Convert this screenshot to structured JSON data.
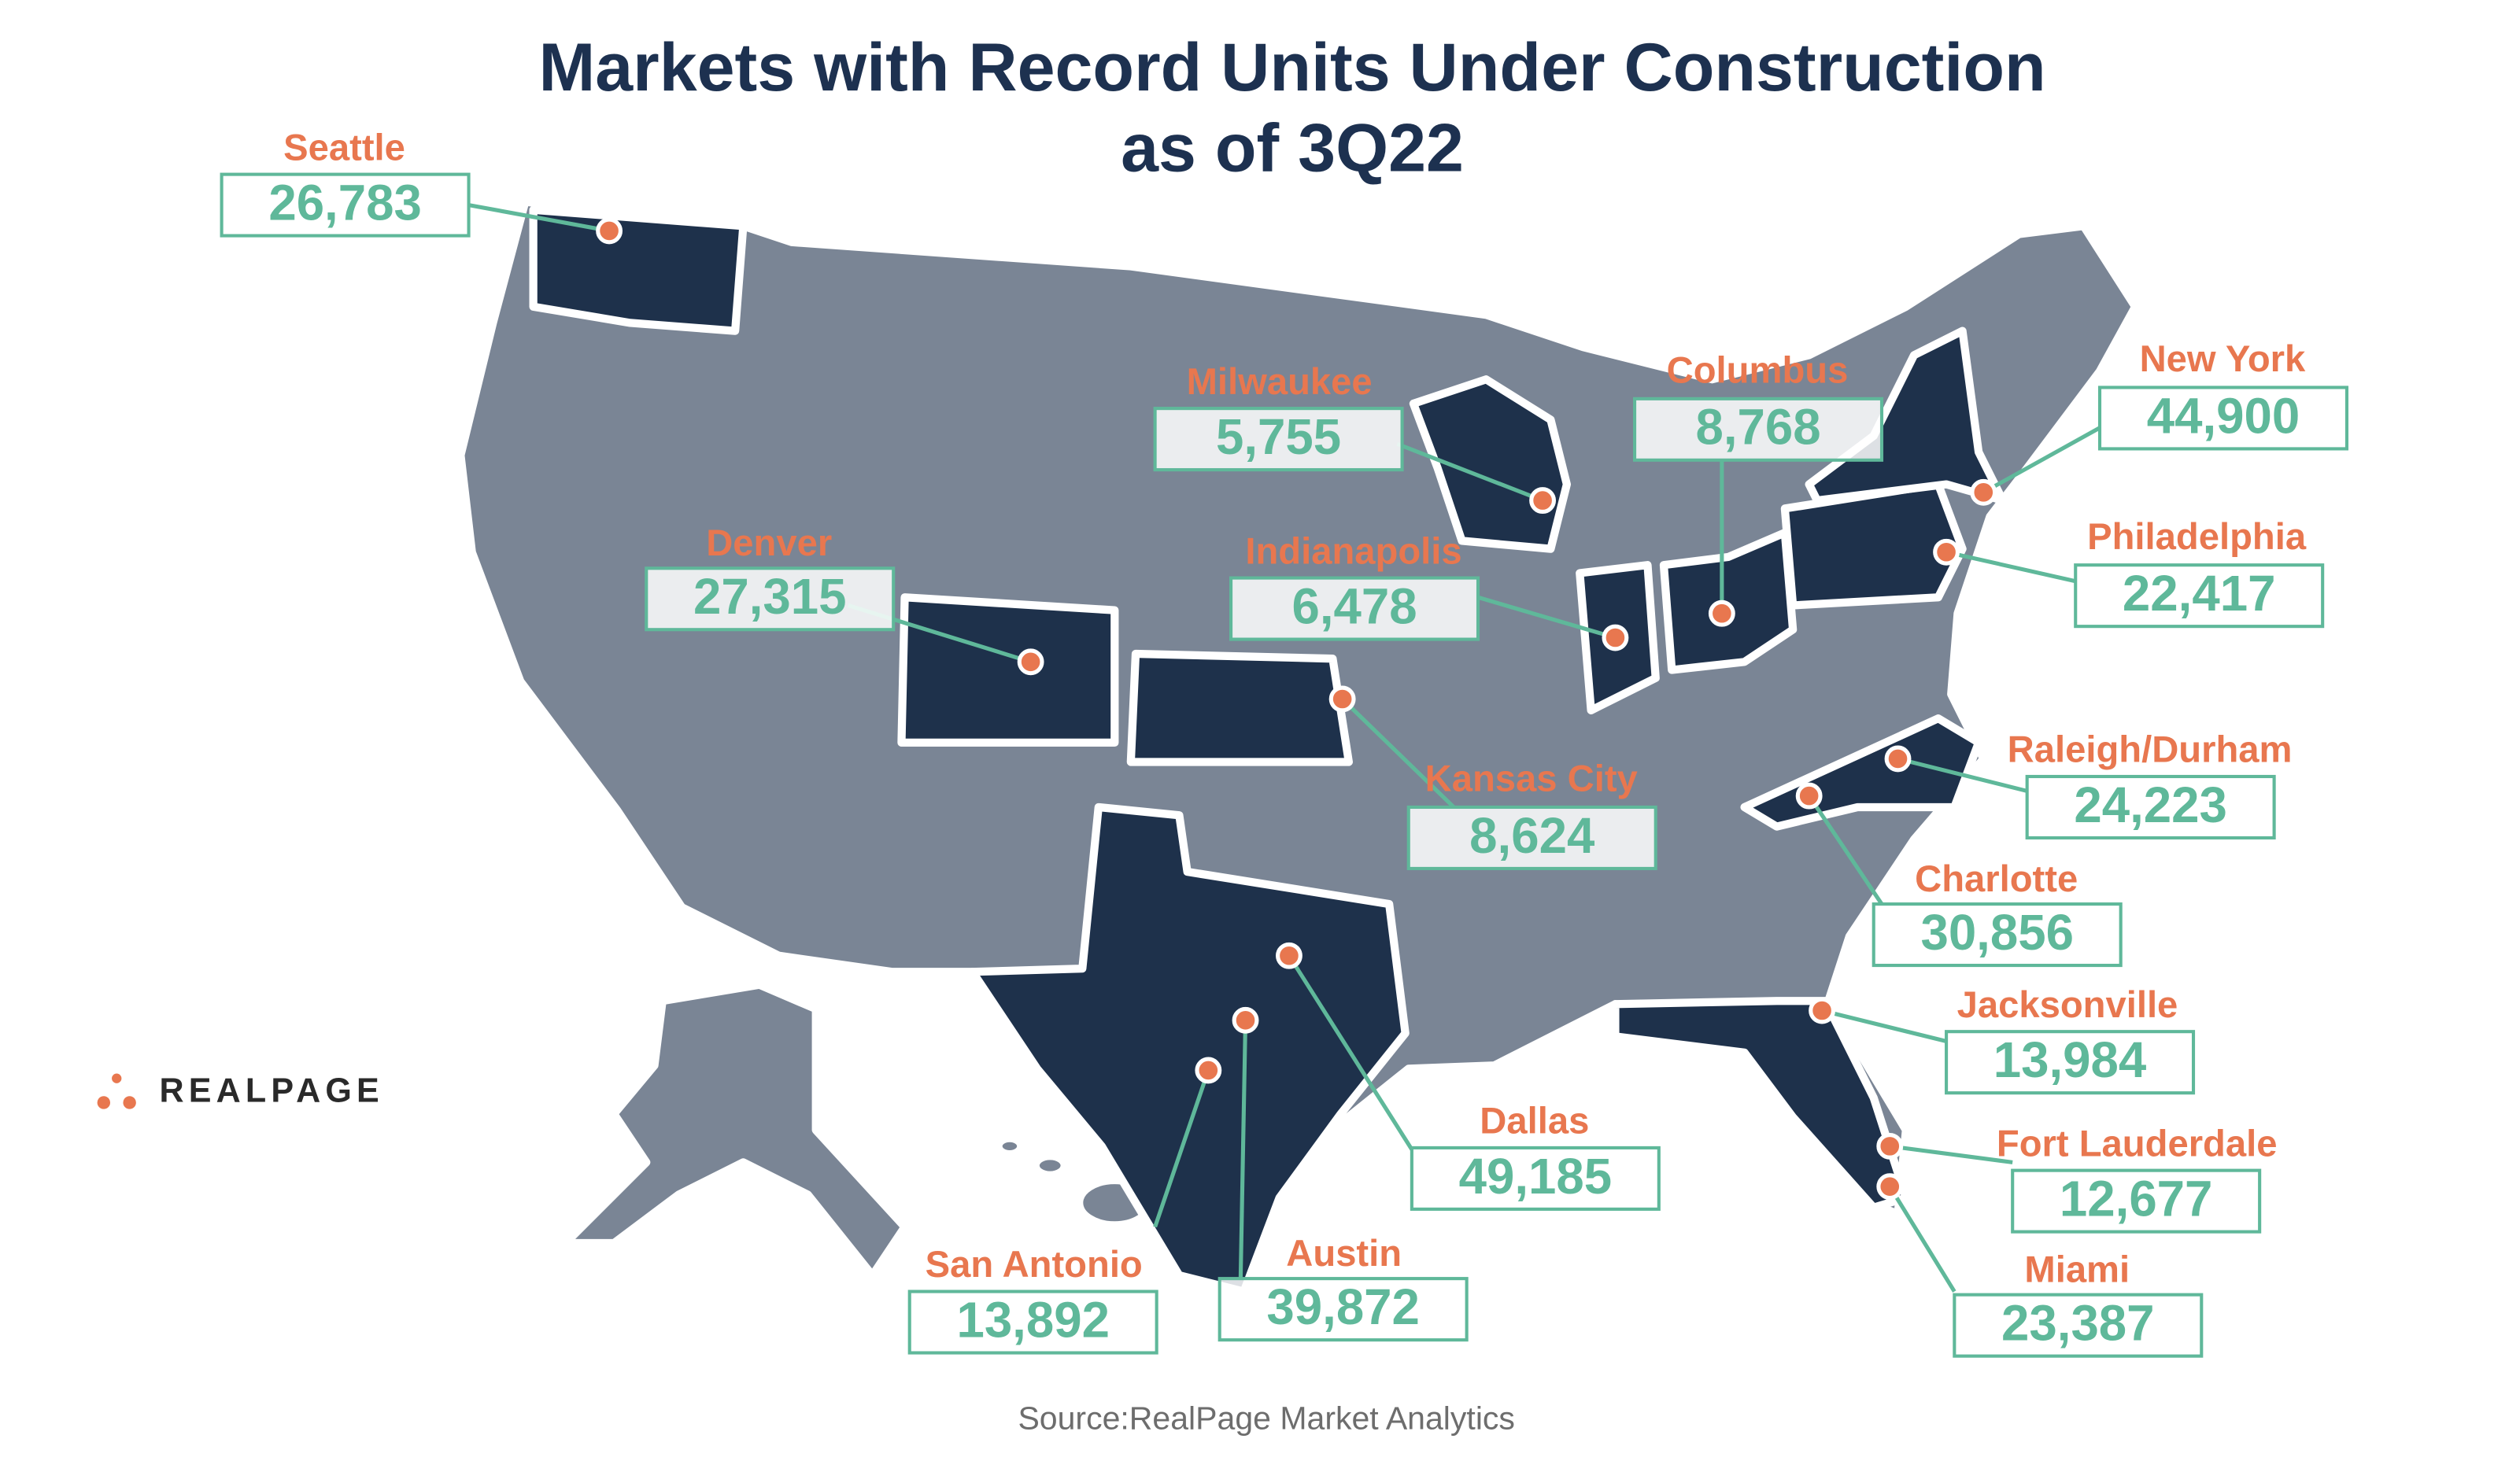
{
  "title": {
    "line1": "Markets with Record Units Under Construction",
    "line2": "as of 3Q22"
  },
  "markets": [
    {
      "name": "Seattle",
      "value": "26,783"
    },
    {
      "name": "Milwaukee",
      "value": "5,755"
    },
    {
      "name": "Columbus",
      "value": "8,768"
    },
    {
      "name": "New York",
      "value": "44,900"
    },
    {
      "name": "Philadelphia",
      "value": "22,417"
    },
    {
      "name": "Denver",
      "value": "27,315"
    },
    {
      "name": "Indianapolis",
      "value": "6,478"
    },
    {
      "name": "Kansas City",
      "value": "8,624"
    },
    {
      "name": "Raleigh/Durham",
      "value": "24,223"
    },
    {
      "name": "Charlotte",
      "value": "30,856"
    },
    {
      "name": "Jacksonville",
      "value": "13,984"
    },
    {
      "name": "Fort Lauderdale",
      "value": "12,677"
    },
    {
      "name": "Miami",
      "value": "23,387"
    },
    {
      "name": "Dallas",
      "value": "49,185"
    },
    {
      "name": "Austin",
      "value": "39,872"
    },
    {
      "name": "San Antonio",
      "value": "13,892"
    }
  ],
  "logo": "REALPAGE",
  "source": "Source:RealPage Market Analytics"
}
